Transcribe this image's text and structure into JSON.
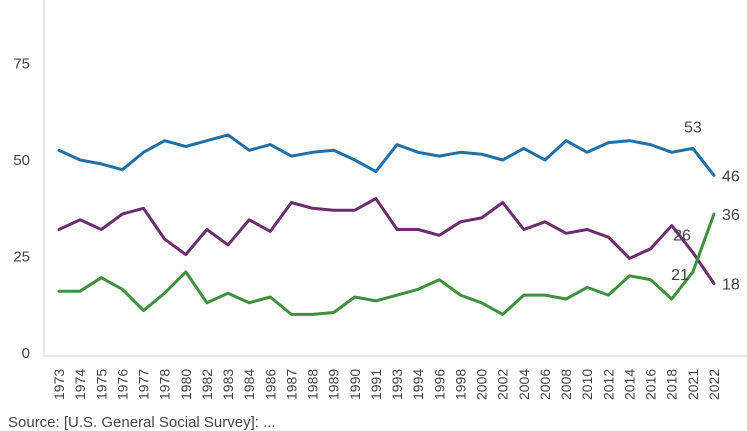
{
  "chart_data": {
    "type": "line",
    "title": "",
    "xlabel": "",
    "ylabel": "",
    "ylim": [
      0,
      90
    ],
    "yticks": [
      0,
      25,
      50,
      75
    ],
    "grid": false,
    "legend": "none",
    "categories": [
      "1973",
      "1974",
      "1975",
      "1976",
      "1977",
      "1978",
      "1980",
      "1982",
      "1983",
      "1984",
      "1986",
      "1987",
      "1988",
      "1989",
      "1990",
      "1991",
      "1993",
      "1994",
      "1996",
      "1998",
      "2000",
      "2002",
      "2004",
      "2006",
      "2008",
      "2010",
      "2012",
      "2014",
      "2016",
      "2018",
      "2021",
      "2022"
    ],
    "series": [
      {
        "color": "#1f6fa8",
        "values": [
          52.5,
          50,
          49,
          47.5,
          52,
          55,
          53.5,
          55,
          56.5,
          52.5,
          54,
          51,
          52,
          52.5,
          50,
          47,
          54,
          52,
          51,
          52,
          51.5,
          50,
          53,
          50,
          55,
          52,
          54.5,
          55,
          54,
          52,
          53,
          46
        ]
      },
      {
        "color": "#6b2d6b",
        "values": [
          32,
          34.5,
          32,
          36,
          37.5,
          29.5,
          25.5,
          32,
          28,
          34.5,
          31.5,
          39,
          37.5,
          37,
          37,
          40,
          32,
          32,
          30.5,
          34,
          35,
          39,
          32,
          34,
          31,
          32,
          30,
          24.5,
          27,
          33,
          26,
          18
        ]
      },
      {
        "color": "#3f8f3f",
        "values": [
          16,
          16,
          19.5,
          16.5,
          11,
          15.5,
          21,
          13,
          15.5,
          13,
          14.5,
          10,
          10,
          10.5,
          14.5,
          13.5,
          15,
          16.5,
          19,
          15,
          13,
          10,
          15,
          15,
          14,
          17,
          15,
          20,
          19,
          14,
          21,
          36
        ]
      }
    ],
    "data_labels": [
      {
        "series": 0,
        "index": 30,
        "text": "53"
      },
      {
        "series": 0,
        "index": 31,
        "text": "46"
      },
      {
        "series": 1,
        "index": 30,
        "text": "26"
      },
      {
        "series": 1,
        "index": 31,
        "text": "18"
      },
      {
        "series": 2,
        "index": 30,
        "text": "21"
      },
      {
        "series": 2,
        "index": 31,
        "text": "36"
      }
    ]
  },
  "source_text": "Source: [U.S. General Social Survey]: ..."
}
